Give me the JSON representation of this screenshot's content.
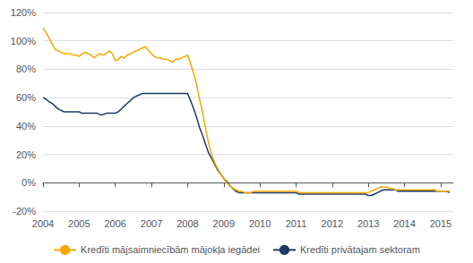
{
  "chart_data": {
    "type": "line",
    "x": [
      2004.0,
      2004.08,
      2004.17,
      2004.25,
      2004.33,
      2004.42,
      2004.5,
      2004.58,
      2004.67,
      2004.75,
      2004.83,
      2004.92,
      2005.0,
      2005.08,
      2005.17,
      2005.25,
      2005.33,
      2005.42,
      2005.5,
      2005.58,
      2005.67,
      2005.75,
      2005.83,
      2005.92,
      2006.0,
      2006.08,
      2006.17,
      2006.25,
      2006.33,
      2006.42,
      2006.5,
      2006.58,
      2006.67,
      2006.75,
      2006.83,
      2006.92,
      2007.0,
      2007.08,
      2007.17,
      2007.25,
      2007.33,
      2007.42,
      2007.5,
      2007.58,
      2007.67,
      2007.75,
      2007.83,
      2007.92,
      2008.0,
      2008.08,
      2008.17,
      2008.25,
      2008.33,
      2008.42,
      2008.5,
      2008.58,
      2008.67,
      2008.75,
      2008.83,
      2008.92,
      2009.0,
      2009.08,
      2009.17,
      2009.25,
      2009.33,
      2009.42,
      2009.5,
      2009.58,
      2009.67,
      2009.75,
      2009.83,
      2009.92,
      2010.0,
      2010.08,
      2010.17,
      2010.25,
      2010.33,
      2010.42,
      2010.5,
      2010.58,
      2010.67,
      2010.75,
      2010.83,
      2010.92,
      2011.0,
      2011.08,
      2011.17,
      2011.25,
      2011.33,
      2011.42,
      2011.5,
      2011.58,
      2011.67,
      2011.75,
      2011.83,
      2011.92,
      2012.0,
      2012.08,
      2012.17,
      2012.25,
      2012.33,
      2012.42,
      2012.5,
      2012.58,
      2012.67,
      2012.75,
      2012.83,
      2012.92,
      2013.0,
      2013.08,
      2013.17,
      2013.25,
      2013.33,
      2013.42,
      2013.5,
      2013.58,
      2013.67,
      2013.75,
      2013.83,
      2013.92,
      2014.0,
      2014.08,
      2014.17,
      2014.25,
      2014.33,
      2014.42,
      2014.5,
      2014.58,
      2014.67,
      2014.75,
      2014.83,
      2014.92,
      2015.0,
      2015.08,
      2015.17,
      2015.25
    ],
    "series": [
      {
        "name": "Kredīti mājsaimniecībām mājokļa iegādei",
        "color": "#F5A800",
        "values": [
          1.09,
          1.06,
          1.02,
          0.98,
          0.94,
          0.93,
          0.92,
          0.91,
          0.91,
          0.91,
          0.9,
          0.9,
          0.89,
          0.91,
          0.92,
          0.91,
          0.9,
          0.88,
          0.9,
          0.91,
          0.9,
          0.91,
          0.93,
          0.91,
          0.86,
          0.87,
          0.89,
          0.88,
          0.9,
          0.91,
          0.92,
          0.93,
          0.94,
          0.95,
          0.96,
          0.93,
          0.91,
          0.89,
          0.88,
          0.88,
          0.87,
          0.87,
          0.86,
          0.85,
          0.87,
          0.87,
          0.88,
          0.89,
          0.9,
          0.84,
          0.77,
          0.69,
          0.59,
          0.49,
          0.38,
          0.28,
          0.19,
          0.14,
          0.1,
          0.06,
          0.03,
          0.0,
          -0.02,
          -0.04,
          -0.05,
          -0.06,
          -0.06,
          -0.07,
          -0.07,
          -0.07,
          -0.06,
          -0.06,
          -0.06,
          -0.06,
          -0.06,
          -0.06,
          -0.06,
          -0.06,
          -0.06,
          -0.06,
          -0.06,
          -0.06,
          -0.06,
          -0.06,
          -0.06,
          -0.07,
          -0.07,
          -0.07,
          -0.07,
          -0.07,
          -0.07,
          -0.07,
          -0.07,
          -0.07,
          -0.07,
          -0.07,
          -0.07,
          -0.07,
          -0.07,
          -0.07,
          -0.07,
          -0.07,
          -0.07,
          -0.07,
          -0.07,
          -0.07,
          -0.07,
          -0.07,
          -0.07,
          -0.06,
          -0.05,
          -0.04,
          -0.03,
          -0.03,
          -0.03,
          -0.04,
          -0.04,
          -0.05,
          -0.05,
          -0.05,
          -0.05,
          -0.05,
          -0.05,
          -0.05,
          -0.05,
          -0.05,
          -0.05,
          -0.05,
          -0.05,
          -0.05,
          -0.05,
          -0.06,
          -0.06,
          -0.06,
          -0.06,
          -0.06
        ]
      },
      {
        "name": "Kredīti privātajam sektoram",
        "color": "#1F3864",
        "values": [
          0.6,
          0.59,
          0.57,
          0.56,
          0.54,
          0.52,
          0.51,
          0.5,
          0.5,
          0.5,
          0.5,
          0.5,
          0.5,
          0.49,
          0.49,
          0.49,
          0.49,
          0.49,
          0.49,
          0.48,
          0.48,
          0.49,
          0.49,
          0.49,
          0.49,
          0.5,
          0.52,
          0.54,
          0.56,
          0.58,
          0.6,
          0.61,
          0.62,
          0.63,
          0.63,
          0.63,
          0.63,
          0.63,
          0.63,
          0.63,
          0.63,
          0.63,
          0.63,
          0.63,
          0.63,
          0.63,
          0.63,
          0.63,
          0.63,
          0.58,
          0.52,
          0.46,
          0.39,
          0.33,
          0.27,
          0.21,
          0.17,
          0.13,
          0.09,
          0.06,
          0.03,
          0.01,
          -0.02,
          -0.04,
          -0.06,
          -0.07,
          -0.07,
          -0.07,
          -0.07,
          -0.07,
          -0.07,
          -0.07,
          -0.07,
          -0.07,
          -0.07,
          -0.07,
          -0.07,
          -0.07,
          -0.07,
          -0.07,
          -0.07,
          -0.07,
          -0.07,
          -0.07,
          -0.07,
          -0.08,
          -0.08,
          -0.08,
          -0.08,
          -0.08,
          -0.08,
          -0.08,
          -0.08,
          -0.08,
          -0.08,
          -0.08,
          -0.08,
          -0.08,
          -0.08,
          -0.08,
          -0.08,
          -0.08,
          -0.08,
          -0.08,
          -0.08,
          -0.08,
          -0.08,
          -0.08,
          -0.09,
          -0.09,
          -0.08,
          -0.07,
          -0.06,
          -0.05,
          -0.05,
          -0.05,
          -0.05,
          -0.05,
          -0.06,
          -0.06,
          -0.06,
          -0.06,
          -0.06,
          -0.06,
          -0.06,
          -0.06,
          -0.06,
          -0.06,
          -0.06,
          -0.06,
          -0.06,
          -0.06,
          -0.06,
          -0.06,
          -0.06,
          -0.07
        ]
      }
    ],
    "xlim": [
      2004,
      2015.35
    ],
    "xticks": [
      2004,
      2005,
      2006,
      2007,
      2008,
      2009,
      2010,
      2011,
      2012,
      2013,
      2014,
      2015
    ],
    "ylim": [
      -0.2,
      1.2
    ],
    "yticks": [
      {
        "value": -0.2,
        "label": "-20%"
      },
      {
        "value": 0.0,
        "label": "0%"
      },
      {
        "value": 0.2,
        "label": "20%"
      },
      {
        "value": 0.4,
        "label": "40%"
      },
      {
        "value": 0.6,
        "label": "60%"
      },
      {
        "value": 0.8,
        "label": "80%"
      },
      {
        "value": 1.0,
        "label": "100%"
      },
      {
        "value": 1.2,
        "label": "120%"
      }
    ],
    "grid": true,
    "legend": "bottom"
  }
}
